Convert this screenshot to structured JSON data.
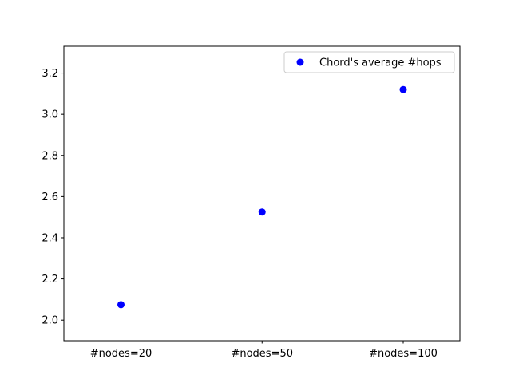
{
  "chart_data": {
    "type": "scatter",
    "title": "",
    "xlabel": "",
    "ylabel": "",
    "categories": [
      "#nodes=20",
      "#nodes=50",
      "#nodes=100"
    ],
    "series": [
      {
        "name": "Chord's average #hops",
        "values": [
          2.075,
          2.525,
          3.12
        ],
        "color": "#0000ff",
        "marker": "circle"
      }
    ],
    "ylim": [
      1.9,
      3.33
    ],
    "yticks": [
      2.0,
      2.2,
      2.4,
      2.6,
      2.8,
      3.0,
      3.2
    ],
    "ytick_labels": [
      "2.0",
      "2.2",
      "2.4",
      "2.6",
      "2.8",
      "3.0",
      "3.2"
    ],
    "grid": false,
    "legend": {
      "location": "upper right",
      "entries": [
        "Chord's average #hops"
      ]
    }
  }
}
